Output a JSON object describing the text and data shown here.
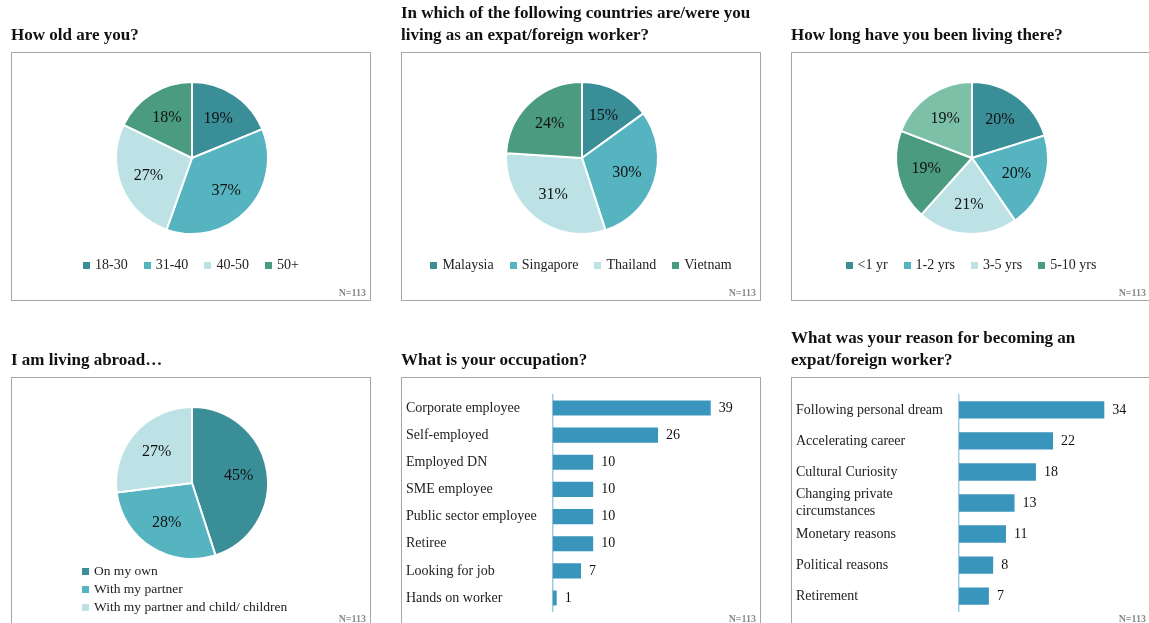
{
  "chart_data": [
    {
      "type": "pie",
      "title": "How old are you?",
      "categories": [
        "18-30",
        "31-40",
        "40-50",
        "50+"
      ],
      "values": [
        19,
        37,
        27,
        18
      ],
      "value_labels": [
        "19%",
        "37%",
        "27%",
        "18%"
      ],
      "colors": [
        "#3a8e98",
        "#56b4c0",
        "#bce2e6",
        "#4a9b80"
      ],
      "legend": "bottom",
      "annotations": [
        "N=113"
      ]
    },
    {
      "type": "pie",
      "title": "In which of the following countries are/were you living as an expat/foreign worker?",
      "categories": [
        "Malaysia",
        "Singapore",
        "Thailand",
        "Vietnam"
      ],
      "values": [
        15,
        30,
        31,
        24
      ],
      "value_labels": [
        "15%",
        "30%",
        "31%",
        "24%"
      ],
      "colors": [
        "#3a8e98",
        "#56b4c0",
        "#bce2e6",
        "#4a9b80"
      ],
      "legend": "bottom",
      "annotations": [
        "N=113"
      ]
    },
    {
      "type": "pie",
      "title": "How long have you been living there?",
      "categories": [
        "<1 yr",
        "1-2 yrs",
        "3-5 yrs",
        "5-10 yrs",
        null
      ],
      "values": [
        20,
        20,
        21,
        19,
        19
      ],
      "value_labels": [
        "20%",
        "20%",
        "21%",
        "19%",
        "19%"
      ],
      "colors": [
        "#3a8e98",
        "#56b4c0",
        "#bce2e6",
        "#4a9b80",
        "#7cc0a8"
      ],
      "legend": "bottom",
      "annotations": [
        "N=113"
      ]
    },
    {
      "type": "pie",
      "title": "I am living abroad…",
      "categories": [
        "On my own",
        "With my partner",
        "With my partner and child/ children"
      ],
      "values": [
        45,
        28,
        27
      ],
      "value_labels": [
        "45%",
        "28%",
        "27%"
      ],
      "colors": [
        "#3a8e98",
        "#56b4c0",
        "#bce2e6"
      ],
      "legend": "bottom",
      "annotations": [
        "N=113"
      ]
    },
    {
      "type": "bar",
      "orientation": "horizontal",
      "title": "What is your occupation?",
      "categories": [
        "Corporate employee",
        "Self-employed",
        "Employed DN",
        "SME employee",
        "Public sector employee",
        "Retiree",
        "Looking for job",
        "Hands on worker"
      ],
      "values": [
        39,
        26,
        10,
        10,
        10,
        10,
        7,
        1
      ],
      "color": "#3a95bd",
      "data_labels": true,
      "annotations": [
        "N=113"
      ]
    },
    {
      "type": "bar",
      "orientation": "horizontal",
      "title": "What was your reason for becoming an expat/foreign worker?",
      "categories": [
        "Following personal dream",
        "Accelerating career",
        "Cultural Curiosity",
        "Changing private circumstances",
        "Monetary reasons",
        "Political reasons",
        "Retirement"
      ],
      "values": [
        34,
        22,
        18,
        13,
        11,
        8,
        7
      ],
      "color": "#3a95bd",
      "data_labels": true,
      "annotations": [
        "N=113"
      ]
    }
  ]
}
